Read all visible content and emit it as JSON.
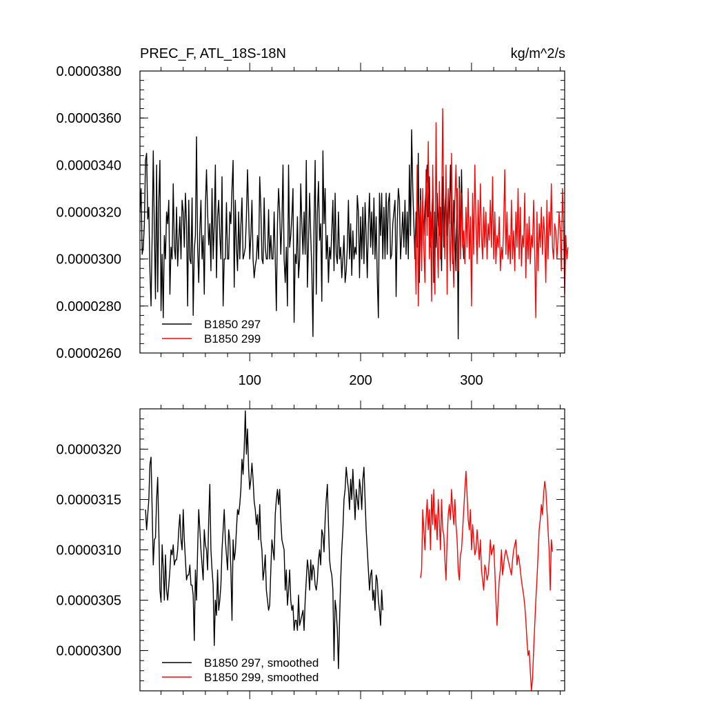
{
  "chart_data": [
    {
      "type": "line",
      "title": "PREC_F, ATL_18S-18N",
      "units": "kg/m^2/s",
      "xlim": [
        1,
        384
      ],
      "ylim": [
        2.6e-05,
        3.8e-05
      ],
      "x_ticks": [
        100,
        200,
        300
      ],
      "x_tick_labels": [
        "100",
        "200",
        "300"
      ],
      "y_ticks": [
        2.6e-05,
        2.8e-05,
        3e-05,
        3.2e-05,
        3.4e-05,
        3.6e-05,
        3.8e-05
      ],
      "y_tick_labels": [
        "0.0000260",
        "0.0000280",
        "0.0000300",
        "0.0000320",
        "0.0000340",
        "0.0000360",
        "0.0000380"
      ],
      "legend_position": "bottom-left",
      "series": [
        {
          "name": "B1850 297",
          "color": "#000000",
          "x_start": 1,
          "values": [
            3.2,
            3.3,
            3.02,
            3.05,
            3.15,
            3.42,
            3.45,
            3.17,
            3.22,
            2.95,
            2.8,
            3.1,
            3.46,
            3.12,
            2.83,
            3.4,
            2.86,
            3.25,
            3.42,
            2.78,
            3.02,
            2.75,
            3.1,
            3.0,
            3.2,
            3.15,
            3.25,
            2.85,
            3.05,
            3.0,
            3.32,
            3.05,
            3.0,
            3.22,
            2.97,
            3.08,
            3.18,
            3.0,
            3.25,
            3.2,
            3.05,
            3.28,
            3.15,
            2.8,
            3.25,
            3.0,
            2.98,
            3.26,
            2.76,
            3.04,
            3.1,
            3.52,
            3.05,
            2.9,
            3.12,
            3.25,
            3.0,
            3.1,
            2.85,
            3.22,
            3.38,
            3.2,
            3.06,
            3.15,
            2.95,
            3.3,
            3.0,
            3.15,
            3.4,
            2.92,
            3.18,
            3.25,
            3.1,
            3.0,
            3.35,
            2.8,
            3.0,
            3.0,
            3.24,
            3.0,
            3.0,
            3.2,
            3.15,
            3.3,
            3.42,
            2.88,
            3.25,
            3.05,
            2.95,
            3.2,
            3.0,
            3.14,
            3.26,
            3.0,
            3.02,
            3.05,
            3.18,
            3.38,
            3.2,
            3.0,
            3.1,
            3.25,
            3.0,
            2.92,
            2.97,
            3.0,
            3.1,
            3.0,
            3.35,
            3.22,
            3.0,
            2.98,
            3.26,
            3.05,
            3.0,
            3.0,
            3.21,
            3.0,
            3.1,
            3.0,
            3.0,
            3.2,
            3.0,
            2.78,
            3.15,
            3.3,
            3.2,
            3.02,
            3.15,
            3.4,
            3.0,
            2.9,
            3.05,
            2.8,
            3.4,
            3.05,
            3.1,
            3.18,
            3.3,
            2.73,
            3.02,
            2.98,
            3.18,
            2.92,
            3.0,
            3.32,
            3.15,
            3.02,
            3.2,
            3.02,
            3.42,
            2.88,
            3.07,
            3.28,
            3.1,
            2.95,
            2.67,
            3.15,
            3.42,
            2.85,
            3.2,
            3.33,
            3.08,
            3.15,
            2.82,
            3.46,
            3.15,
            3.3,
            3.0,
            3.1,
            2.9,
            3.05,
            3.0,
            3.12,
            3.25,
            2.95,
            3.28,
            3.02,
            2.98,
            3.2,
            3.0,
            3.05,
            2.92,
            3.0,
            3.1,
            2.9,
            2.95,
            3.05,
            3.25,
            3.0,
            3.15,
            2.93,
            3.12,
            3.0,
            3.05,
            3.02,
            3.27,
            3.2,
            2.92,
            3.18,
            3.0,
            3.22,
            2.98,
            3.24,
            3.1,
            2.92,
            3.15,
            3.28,
            3.05,
            3.2,
            3.02,
            3.26,
            3.0,
            3.18,
            2.92,
            2.75,
            3.28,
            3.1,
            3.28,
            3.0,
            3.22,
            3.0,
            3.28,
            3.02,
            3.24,
            3.28,
            3.0,
            3.02,
            3.15,
            3.2,
            3.25,
            2.84,
            3.15,
            3.3,
            3.25,
            3.0,
            3.1,
            3.2,
            3.05,
            3.25,
            3.02,
            3.2,
            3.0,
            3.4,
            3.1,
            3.55,
            3.3,
            3.15,
            3.0,
            3.2,
            3.05,
            3.45,
            2.9,
            3.3,
            3.0,
            3.25,
            3.1,
            3.22,
            3.3,
            3.4,
            3.18,
            3.35,
            3.05,
            3.15,
            3.3,
            2.9,
            3.2,
            3.05,
            3.28,
            3.15,
            3.1,
            3.22,
            2.95,
            3.35,
            3.05,
            3.22,
            3.3,
            3.1,
            3.28,
            3.15,
            3.4,
            3.18,
            2.98,
            3.25,
            3.1,
            2.95,
            3.3,
            2.66,
            3.35,
            3.05,
            3.38,
            3.1,
            3.0
          ]
        },
        {
          "name": "B1850 299",
          "color": "#ff0000",
          "x_start": 249,
          "values": [
            3.1,
            2.85,
            3.4,
            2.8,
            3.15,
            3.25,
            2.95,
            3.3,
            3.05,
            2.9,
            3.38,
            3.1,
            3.5,
            3.0,
            3.2,
            2.82,
            3.4,
            3.05,
            2.85,
            3.58,
            3.1,
            2.92,
            3.33,
            3.0,
            3.15,
            3.64,
            3.2,
            3.0,
            3.4,
            2.85,
            3.3,
            3.1,
            2.95,
            3.45,
            3.05,
            2.88,
            3.25,
            3.4,
            3.15,
            2.95,
            3.3,
            3.0,
            3.28,
            3.05,
            3.12,
            2.98,
            3.22,
            3.05,
            3.3,
            3.0,
            3.18,
            2.8,
            3.28,
            3.02,
            3.4,
            3.15,
            2.98,
            3.25,
            3.05,
            3.32,
            3.1,
            3.0,
            3.22,
            3.05,
            3.2,
            3.0,
            3.15,
            3.08,
            3.25,
            3.05,
            3.35,
            3.0,
            3.2,
            2.98,
            3.1,
            3.05,
            3.18,
            2.95,
            3.05,
            3.0,
            3.15,
            3.38,
            3.02,
            3.2,
            3.0,
            3.1,
            2.98,
            3.25,
            3.0,
            3.12,
            2.95,
            3.2,
            3.05,
            3.3,
            3.0,
            3.22,
            2.97,
            3.1,
            3.05,
            3.28,
            2.92,
            3.15,
            3.0,
            3.18,
            2.98,
            3.1,
            3.05,
            3.25,
            3.02,
            2.75,
            3.2,
            2.95,
            3.15,
            3.05,
            3.22,
            3.02,
            3.18,
            3.1,
            2.9,
            3.25,
            3.0,
            3.2,
            3.1,
            3.32,
            3.05,
            3.0,
            3.15,
            3.12,
            3.0,
            3.08,
            3.2,
            3.12,
            2.95,
            3.3,
            3.15,
            2.85,
            3.1,
            3.0,
            3.05
          ]
        }
      ]
    },
    {
      "type": "line",
      "title": "",
      "xlim": [
        1,
        384
      ],
      "ylim": [
        2.96e-05,
        3.24e-05
      ],
      "x_ticks": [
        100,
        200,
        300
      ],
      "y_ticks": [
        3e-05,
        3.05e-05,
        3.1e-05,
        3.15e-05,
        3.2e-05
      ],
      "y_tick_labels": [
        "0.0000300",
        "0.0000305",
        "0.0000310",
        "0.0000315",
        "0.0000320"
      ],
      "legend_position": "bottom-left",
      "series": [
        {
          "name": "B1850 297, smoothed",
          "color": "#000000",
          "x_start": 6,
          "values": [
            3.14,
            3.12,
            3.135,
            3.15,
            3.185,
            3.192,
            3.14,
            3.085,
            3.11,
            3.112,
            3.15,
            3.172,
            3.12,
            3.06,
            3.048,
            3.105,
            3.082,
            3.05,
            3.095,
            3.06,
            3.05,
            3.065,
            3.08,
            3.1,
            3.095,
            3.105,
            3.085,
            3.09,
            3.09,
            3.1,
            3.12,
            3.135,
            3.11,
            3.1,
            3.14,
            3.11,
            3.09,
            3.07,
            3.075,
            3.075,
            3.085,
            3.065,
            3.065,
            3.055,
            3.01,
            3.08,
            3.05,
            3.1,
            3.14,
            3.12,
            3.1,
            3.085,
            3.07,
            3.12,
            3.105,
            3.1,
            3.08,
            3.13,
            3.165,
            3.1,
            3.08,
            3.065,
            3.005,
            3.05,
            3.035,
            3.08,
            3.04,
            3.05,
            3.065,
            3.1,
            3.12,
            3.14,
            3.11,
            3.095,
            3.08,
            3.12,
            3.11,
            3.08,
            3.03,
            3.11,
            3.09,
            3.098,
            3.12,
            3.14,
            3.135,
            3.145,
            3.16,
            3.19,
            3.175,
            3.2,
            3.238,
            3.195,
            3.22,
            3.18,
            3.16,
            3.17,
            3.186,
            3.17,
            3.148,
            3.14,
            3.125,
            3.135,
            3.11,
            3.145,
            3.11,
            3.1,
            3.07,
            3.08,
            3.095,
            3.06,
            3.05,
            3.04,
            3.045,
            3.08,
            3.11,
            3.1,
            3.09,
            3.135,
            3.15,
            3.16,
            3.145,
            3.16,
            3.13,
            3.11,
            3.105,
            3.1,
            3.06,
            3.08,
            3.045,
            3.06,
            3.08,
            3.05,
            3.04,
            3.045,
            3.02,
            3.03,
            3.03,
            3.02,
            3.055,
            3.025,
            3.03,
            3.035,
            3.04,
            3.02,
            3.05,
            3.07,
            3.09,
            3.08,
            3.06,
            3.09,
            3.07,
            3.085,
            3.08,
            3.065,
            3.06,
            3.07,
            3.09,
            3.1,
            3.085,
            3.12,
            3.115,
            3.098,
            3.13,
            3.15,
            3.165,
            3.125,
            3.09,
            3.08,
            3.075,
            3.06,
            2.99,
            3.05,
            3.04,
            3.02,
            2.982,
            3.03,
            3.07,
            3.1,
            3.12,
            3.15,
            3.16,
            3.182,
            3.17,
            3.16,
            3.14,
            3.17,
            3.15,
            3.18,
            3.155,
            3.13,
            3.16,
            3.15,
            3.14,
            3.17,
            3.16,
            3.14,
            3.17,
            3.182,
            3.15,
            3.12,
            3.1,
            3.08,
            3.06,
            3.075,
            3.08,
            3.05,
            3.06,
            3.04,
            3.075,
            3.07,
            3.05,
            3.04,
            3.025,
            3.06,
            3.04
          ]
        },
        {
          "name": "B1850 299, smoothed",
          "color": "#ff0000",
          "x_start": 254,
          "values": [
            3.072,
            3.08,
            3.14,
            3.12,
            3.1,
            3.13,
            3.15,
            3.12,
            3.14,
            3.1,
            3.155,
            3.125,
            3.16,
            3.12,
            3.135,
            3.11,
            3.15,
            3.128,
            3.1,
            3.15,
            3.12,
            3.115,
            3.09,
            3.07,
            3.11,
            3.135,
            3.145,
            3.13,
            3.16,
            3.14,
            3.125,
            3.15,
            3.125,
            3.11,
            3.08,
            3.07,
            3.095,
            3.1,
            3.12,
            3.14,
            3.16,
            3.178,
            3.155,
            3.13,
            3.12,
            3.14,
            3.1,
            3.125,
            3.11,
            3.095,
            3.1,
            3.12,
            3.105,
            3.09,
            3.11,
            3.08,
            3.07,
            3.06,
            3.085,
            3.08,
            3.07,
            3.075,
            3.09,
            3.11,
            3.095,
            3.1,
            3.105,
            3.08,
            3.05,
            3.025,
            3.05,
            3.07,
            3.08,
            3.1,
            3.075,
            3.085,
            3.095,
            3.1,
            3.095,
            3.09,
            3.085,
            3.08,
            3.075,
            3.09,
            3.1,
            3.105,
            3.11,
            3.085,
            3.095,
            3.09,
            3.08,
            3.07,
            3.062,
            3.055,
            3.045,
            3.03,
            3.01,
            2.995,
            3.0,
            2.98,
            2.96,
            2.972,
            3.0,
            3.025,
            3.05,
            3.07,
            3.095,
            3.12,
            3.13,
            3.145,
            3.135,
            3.155,
            3.168,
            3.16,
            3.14,
            3.12,
            3.1,
            3.06,
            3.11,
            3.098
          ]
        }
      ]
    }
  ]
}
